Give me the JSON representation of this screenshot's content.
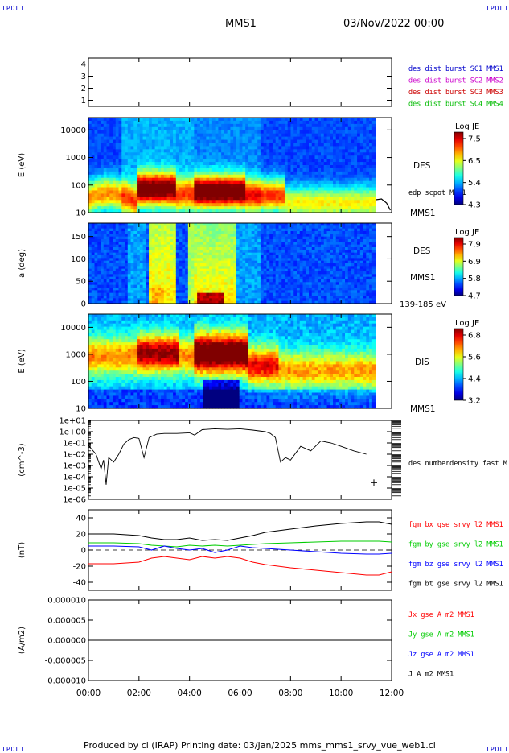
{
  "header": {
    "corner_left": "IPDLI",
    "corner_right": "IPDLI",
    "title": "MMS1",
    "date": "03/Nov/2022 00:00"
  },
  "footer": {
    "text": "Produced by cl (IRAP)   Printing date: 03/Jan/2025   mms_mms1_srvy_vue_web1.cl",
    "corner_left": "IPDLI",
    "corner_right": "IPDLI"
  },
  "chart_data": [
    {
      "type": "table",
      "ylim": [
        0.5,
        4.5
      ],
      "y_ticks": [
        "4",
        "3",
        "2",
        "1"
      ],
      "legend": [
        {
          "text": "des dist burst SC1 MMS1",
          "color": "#0000cc"
        },
        {
          "text": "des dist burst SC2 MMS2",
          "color": "#cc00cc"
        },
        {
          "text": "des dist burst SC3 MMS3",
          "color": "#cc0000"
        },
        {
          "text": "des dist burst SC4 MMS4",
          "color": "#00bb00"
        }
      ]
    },
    {
      "type": "heatmap",
      "ylabel": "E (eV)",
      "y_scale": "log",
      "y_ticks": [
        "10000",
        "1000",
        "100",
        "10"
      ],
      "right_labels": [
        "DES",
        "edp scpot MMS1",
        "MMS1"
      ],
      "colorbar": {
        "title": "Log JE",
        "ticks": [
          "7.5",
          "6.5",
          "5.4",
          "4.3"
        ]
      }
    },
    {
      "type": "heatmap",
      "ylabel": "a (deg)",
      "ylim": [
        0,
        180
      ],
      "y_ticks": [
        "150",
        "100",
        "50",
        "0"
      ],
      "right_labels": [
        "DES",
        "MMS1",
        "139-185 eV"
      ],
      "colorbar": {
        "title": "Log JE",
        "ticks": [
          "7.9",
          "6.9",
          "5.8",
          "4.7"
        ]
      }
    },
    {
      "type": "heatmap",
      "ylabel": "E (eV)",
      "y_scale": "log",
      "y_ticks": [
        "10000",
        "1000",
        "100",
        "10"
      ],
      "right_labels": [
        "DIS",
        "MMS1"
      ],
      "colorbar": {
        "title": "Log JE",
        "ticks": [
          "6.8",
          "5.6",
          "4.4",
          "3.2"
        ]
      }
    },
    {
      "type": "line",
      "ylabel": "(cm^-3)",
      "y_scale": "log",
      "ylim": [
        1e-06,
        10
      ],
      "y_ticks": [
        "1e+01",
        "1e+00",
        "1e-01",
        "1e-02",
        "1e-03",
        "1e-04",
        "1e-05",
        "1e-06"
      ],
      "legend": [
        {
          "text": "des numberdensity fast M",
          "color": "#000000"
        }
      ],
      "x": [
        0.0,
        0.3,
        0.5,
        0.6,
        0.7,
        0.8,
        1.0,
        1.2,
        1.4,
        1.6,
        1.8,
        2.0,
        2.2,
        2.4,
        2.7,
        3.0,
        3.5,
        4.0,
        4.2,
        4.5,
        5.0,
        5.5,
        6.0,
        6.5,
        7.0,
        7.2,
        7.4,
        7.6,
        7.8,
        8.0,
        8.4,
        8.8,
        9.2,
        9.6,
        10.0,
        10.5,
        11.0
      ],
      "values": [
        0.06,
        0.01,
        0.0005,
        0.003,
        2e-05,
        0.005,
        0.002,
        0.01,
        0.08,
        0.2,
        0.3,
        0.25,
        0.005,
        0.3,
        0.6,
        0.7,
        0.7,
        0.8,
        0.5,
        1.5,
        1.8,
        1.6,
        1.8,
        1.4,
        1.0,
        0.7,
        0.3,
        0.002,
        0.005,
        0.003,
        0.05,
        0.02,
        0.15,
        0.1,
        0.05,
        0.02,
        0.01
      ]
    },
    {
      "type": "line",
      "ylabel": "(nT)",
      "ylim": [
        -50,
        50
      ],
      "y_ticks": [
        "40",
        "20",
        "0",
        "-20",
        "-40"
      ],
      "x": [
        0,
        1,
        2,
        2.5,
        3,
        3.5,
        4,
        4.5,
        5,
        5.5,
        6,
        6.5,
        7,
        8,
        9,
        10,
        11,
        11.5,
        12
      ],
      "series": [
        {
          "name": "fgm bx gse srvy l2 MMS1",
          "color": "#ff0000",
          "values": [
            -17,
            -17,
            -15,
            -10,
            -8,
            -10,
            -12,
            -8,
            -10,
            -8,
            -10,
            -15,
            -18,
            -22,
            -25,
            -28,
            -31,
            -31,
            -27
          ]
        },
        {
          "name": "fgm by gse srvy l2 MMS1",
          "color": "#00cc00",
          "values": [
            9,
            9,
            8,
            6,
            5,
            4,
            6,
            5,
            6,
            5,
            6,
            7,
            8,
            9,
            10,
            11,
            11,
            11,
            10
          ]
        },
        {
          "name": "fgm bz gse srvy l2 MMS1",
          "color": "#0000ff",
          "values": [
            5,
            5,
            4,
            0,
            5,
            2,
            0,
            2,
            -3,
            0,
            5,
            3,
            2,
            0,
            -2,
            -4,
            -5,
            -5,
            -4
          ]
        },
        {
          "name": "fgm bt gse srvy l2 MMS1",
          "color": "#000000",
          "values": [
            20,
            20,
            18,
            15,
            13,
            13,
            15,
            12,
            13,
            12,
            15,
            18,
            22,
            26,
            30,
            33,
            35,
            35,
            32
          ]
        }
      ]
    },
    {
      "type": "line",
      "ylabel": "(A/m2)",
      "ylim": [
        -1e-05,
        1e-05
      ],
      "y_ticks": [
        "0.000010",
        "0.000005",
        "0.000000",
        "-0.000005",
        "-0.000010"
      ],
      "x": [
        0,
        12
      ],
      "series": [
        {
          "name": "Jx gse A m2 MMS1",
          "color": "#ff0000",
          "values": [
            0,
            0
          ]
        },
        {
          "name": "Jy gse A m2 MMS1",
          "color": "#00cc00",
          "values": [
            0,
            0
          ]
        },
        {
          "name": "Jz gse A m2 MMS1",
          "color": "#0000ff",
          "values": [
            0,
            0
          ]
        },
        {
          "name": "J A m2 MMS1",
          "color": "#000000",
          "values": [
            0,
            0
          ]
        }
      ]
    }
  ],
  "x_axis": {
    "xlim": [
      0,
      12
    ],
    "tick_values": [
      0,
      2,
      4,
      6,
      8,
      10,
      12
    ],
    "tick_labels": [
      "00:00",
      "02:00",
      "04:00",
      "06:00",
      "08:00",
      "10:00",
      "12:00"
    ]
  }
}
